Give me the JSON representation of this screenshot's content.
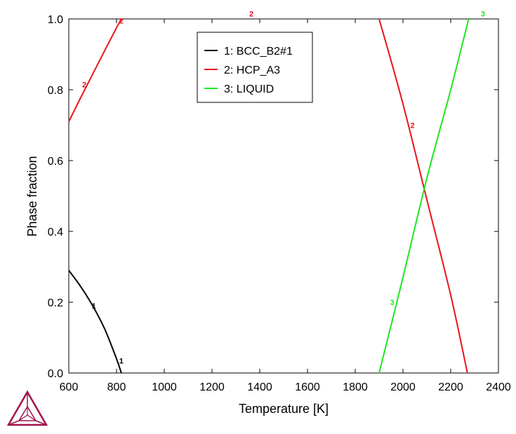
{
  "chart_data": {
    "type": "line",
    "xlabel": "Temperature [K]",
    "ylabel": "Phase fraction",
    "xlim": [
      600,
      2400
    ],
    "ylim": [
      0,
      1
    ],
    "x_ticks": [
      600,
      800,
      1000,
      1200,
      1400,
      1600,
      1800,
      2000,
      2200,
      2400
    ],
    "y_ticks": [
      0.0,
      0.2,
      0.4,
      0.6,
      0.8,
      1.0
    ],
    "y_tick_labels": [
      "0.0",
      "0.2",
      "0.4",
      "0.6",
      "0.8",
      "1.0"
    ],
    "grid": false,
    "legend_position": "top-center",
    "series": [
      {
        "id": "1",
        "name": "1: BCC_B2#1",
        "color": "#000000",
        "x": [
          600,
          650,
          700,
          750,
          800,
          820
        ],
        "y": [
          0.29,
          0.244,
          0.19,
          0.125,
          0.04,
          0.0
        ]
      },
      {
        "id": "2",
        "name": "2: HCP_A3",
        "color": "#e8141c",
        "segments": [
          {
            "x": [
              600,
              650,
              700,
              750,
              800,
              820
            ],
            "y": [
              0.71,
              0.778,
              0.844,
              0.91,
              0.975,
              1.0
            ]
          },
          {
            "x": [
              1900,
              2000,
              2100,
              2200,
              2270
            ],
            "y": [
              1.0,
              0.76,
              0.49,
              0.22,
              0.0
            ]
          }
        ]
      },
      {
        "id": "3",
        "name": "3: LIQUID",
        "color": "#1ee81e",
        "x": [
          1900,
          2000,
          2100,
          2200,
          2275
        ],
        "y": [
          0.0,
          0.27,
          0.55,
          0.8,
          1.0
        ]
      }
    ],
    "annotations": [
      {
        "text": "1",
        "x": 705,
        "y": 0.19,
        "color": "#000000"
      },
      {
        "text": "1",
        "x": 820,
        "y": 0.035,
        "color": "#000000"
      },
      {
        "text": "2",
        "x": 665,
        "y": 0.815,
        "color": "#e8141c"
      },
      {
        "text": "2",
        "x": 820,
        "y": 0.995,
        "color": "#e8141c"
      },
      {
        "text": "2",
        "x": 1365,
        "y": 1.015,
        "color": "#e8141c"
      },
      {
        "text": "2",
        "x": 2040,
        "y": 0.7,
        "color": "#e8141c"
      },
      {
        "text": "3",
        "x": 1955,
        "y": 0.2,
        "color": "#1ee81e"
      },
      {
        "text": "3",
        "x": 2335,
        "y": 1.015,
        "color": "#1ee81e"
      }
    ]
  },
  "logo": {
    "name": "thermo-calc-logo-icon",
    "color": "#a1124a"
  }
}
